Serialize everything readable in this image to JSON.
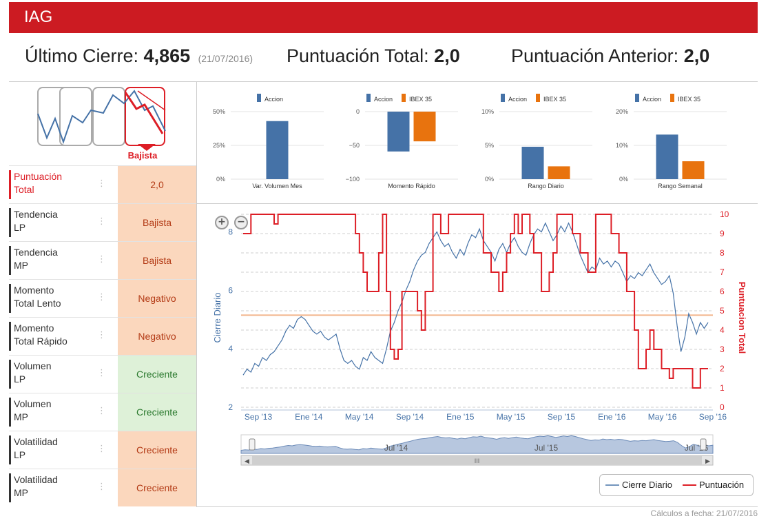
{
  "title": "IAG",
  "summary": {
    "ultimo_label": "Último Cierre:",
    "ultimo_value": "4,865",
    "ultimo_date": "(21/07/2016)",
    "total_label": "Puntuación Total:",
    "total_value": "2,0",
    "anterior_label": "Puntuación Anterior:",
    "anterior_value": "2,0"
  },
  "trend_icon_label": "Bajista",
  "indicators": [
    {
      "label_1": "Puntuación",
      "label_2": "Total",
      "value": "2,0",
      "status": "total"
    },
    {
      "label_1": "Tendencia",
      "label_2": "LP",
      "value": "Bajista",
      "status": "neg"
    },
    {
      "label_1": "Tendencia",
      "label_2": "MP",
      "value": "Bajista",
      "status": "neg"
    },
    {
      "label_1": "Momento",
      "label_2": "Total Lento",
      "value": "Negativo",
      "status": "neg"
    },
    {
      "label_1": "Momento",
      "label_2": "Total Rápido",
      "value": "Negativo",
      "status": "neg"
    },
    {
      "label_1": "Volumen",
      "label_2": "LP",
      "value": "Creciente",
      "status": "pos"
    },
    {
      "label_1": "Volumen",
      "label_2": "MP",
      "value": "Creciente",
      "status": "pos"
    },
    {
      "label_1": "Volatilidad",
      "label_2": "LP",
      "value": "Creciente",
      "status": "neg"
    },
    {
      "label_1": "Volatilidad",
      "label_2": "MP",
      "value": "Creciente",
      "status": "neg"
    }
  ],
  "colors": {
    "accion": "#4572a7",
    "ibex": "#e8730e",
    "red": "#dd1e26"
  },
  "chart_data": [
    {
      "type": "bar",
      "xlabel": "Var. Volumen Mes",
      "series": [
        {
          "name": "Accion",
          "values": [
            43
          ]
        }
      ],
      "yticks": [
        "50%",
        "25%",
        "0%"
      ],
      "ylim": [
        0,
        50
      ]
    },
    {
      "type": "bar",
      "xlabel": "Momento Rápido",
      "series": [
        {
          "name": "Accion",
          "values": [
            -59
          ]
        },
        {
          "name": "IBEX 35",
          "values": [
            -44
          ]
        }
      ],
      "yticks": [
        "0",
        "−50",
        "−100"
      ],
      "ylim": [
        -100,
        0
      ]
    },
    {
      "type": "bar",
      "xlabel": "Rango Diario",
      "series": [
        {
          "name": "Accion",
          "values": [
            4.8
          ]
        },
        {
          "name": "IBEX 35",
          "values": [
            1.9
          ]
        }
      ],
      "yticks": [
        "10%",
        "5%",
        "0%"
      ],
      "ylim": [
        0,
        10
      ]
    },
    {
      "type": "bar",
      "xlabel": "Rango Semanal",
      "series": [
        {
          "name": "Accion",
          "values": [
            13.2
          ]
        },
        {
          "name": "IBEX 35",
          "values": [
            5.3
          ]
        }
      ],
      "yticks": [
        "20%",
        "10%",
        "0%"
      ],
      "ylim": [
        0,
        20
      ]
    },
    {
      "type": "line",
      "ylabel": "Cierre Diario",
      "y2label": "Puntuacion Total",
      "ylim": [
        2,
        8.6
      ],
      "y2lim": [
        0,
        10
      ],
      "yticks": [
        "8",
        "6",
        "4",
        "2"
      ],
      "y2ticks": [
        "10",
        "9",
        "8",
        "7",
        "6",
        "5",
        "4",
        "3",
        "2",
        "1",
        "0"
      ],
      "xticks": [
        "Sep '13",
        "Ene '14",
        "May '14",
        "Sep '14",
        "Ene '15",
        "May '15",
        "Sep '15",
        "Ene '16",
        "May '16",
        "Sep '16"
      ],
      "reference_line": 5.15,
      "series": [
        {
          "name": "Cierre Diario",
          "axis": "left",
          "x": [
            0,
            2,
            4,
            6,
            8,
            10,
            12,
            14,
            16,
            18,
            20,
            22,
            24,
            26,
            28,
            30,
            32,
            34,
            36,
            38,
            40,
            42,
            44,
            46,
            48,
            50,
            52,
            54,
            56,
            58,
            60,
            62,
            64,
            66,
            68,
            70,
            72,
            74,
            76,
            78,
            80,
            82,
            84,
            86,
            88,
            90,
            92,
            94,
            96,
            98,
            100,
            102,
            104,
            106,
            108,
            110,
            112,
            114,
            116,
            118,
            120,
            122,
            124,
            126,
            128,
            130,
            132,
            134,
            136,
            138,
            140,
            142,
            144,
            146,
            148,
            150,
            152,
            154,
            156,
            158,
            160,
            162,
            164,
            166,
            168,
            170,
            172,
            174,
            176,
            178,
            180,
            182,
            184,
            186,
            188,
            190,
            192,
            194,
            196,
            198,
            200,
            202,
            204,
            206,
            208,
            210,
            212,
            214,
            216,
            218,
            220,
            222,
            224,
            226,
            228,
            230,
            232,
            234,
            236,
            238,
            240
          ],
          "y": [
            3.1,
            3.3,
            3.2,
            3.5,
            3.4,
            3.7,
            3.6,
            3.8,
            3.9,
            4.1,
            4.3,
            4.6,
            4.8,
            4.7,
            5.0,
            5.1,
            5.0,
            4.8,
            4.6,
            4.5,
            4.6,
            4.4,
            4.3,
            4.4,
            4.5,
            4.0,
            3.6,
            3.5,
            3.6,
            3.4,
            3.3,
            3.7,
            3.6,
            3.9,
            3.7,
            3.6,
            3.5,
            4.0,
            4.6,
            4.9,
            5.3,
            5.6,
            6.0,
            6.3,
            6.7,
            7.0,
            7.2,
            7.3,
            7.6,
            7.8,
            8.0,
            7.7,
            7.5,
            7.6,
            7.3,
            7.1,
            7.4,
            7.2,
            7.6,
            7.9,
            7.8,
            8.1,
            7.7,
            7.5,
            7.3,
            7.0,
            7.4,
            7.6,
            7.3,
            7.6,
            7.8,
            7.5,
            7.3,
            7.2,
            7.6,
            7.9,
            8.1,
            8.0,
            8.3,
            8.0,
            7.7,
            7.9,
            8.2,
            8.0,
            8.3,
            8.0,
            7.6,
            7.2,
            6.9,
            6.6,
            6.8,
            6.7,
            7.1,
            6.9,
            7.0,
            6.8,
            7.0,
            6.9,
            6.6,
            6.3,
            6.5,
            6.4,
            6.6,
            6.5,
            6.7,
            6.9,
            6.6,
            6.4,
            6.2,
            6.3,
            6.5,
            5.9,
            4.8,
            3.9,
            4.4,
            5.2,
            4.9,
            4.5,
            4.9,
            4.7,
            4.9
          ]
        },
        {
          "name": "Puntuación",
          "axis": "right",
          "x": [
            0,
            2,
            4,
            6,
            8,
            10,
            12,
            14,
            16,
            18,
            20,
            22,
            24,
            26,
            28,
            30,
            32,
            34,
            36,
            38,
            40,
            42,
            44,
            46,
            48,
            50,
            52,
            54,
            56,
            58,
            60,
            62,
            64,
            66,
            68,
            70,
            72,
            74,
            76,
            78,
            80,
            82,
            84,
            86,
            88,
            90,
            92,
            94,
            96,
            98,
            100,
            102,
            104,
            106,
            108,
            110,
            112,
            114,
            116,
            118,
            120,
            122,
            124,
            126,
            128,
            130,
            132,
            134,
            136,
            138,
            140,
            142,
            144,
            146,
            148,
            150,
            152,
            154,
            156,
            158,
            160,
            162,
            164,
            166,
            168,
            170,
            172,
            174,
            176,
            178,
            180,
            182,
            184,
            186,
            188,
            190,
            192,
            194,
            196,
            198,
            200,
            202,
            204,
            206,
            208,
            210,
            212,
            214,
            216,
            218,
            220,
            222,
            224,
            226,
            228,
            230,
            232,
            234,
            236,
            238,
            240
          ],
          "y": [
            9,
            9,
            10,
            10,
            10,
            10,
            10,
            10,
            9.5,
            10,
            10,
            10,
            10,
            10,
            10,
            10,
            10,
            10,
            10,
            10,
            10,
            10,
            10,
            10,
            10,
            10,
            10,
            10,
            10,
            9,
            8,
            7,
            6,
            6,
            6,
            8,
            10,
            6,
            3,
            2.5,
            3,
            6,
            6,
            6,
            6,
            5,
            4,
            6,
            6,
            10,
            10,
            9,
            9,
            10,
            10,
            10,
            10,
            10,
            10,
            10,
            10,
            10,
            8,
            8,
            7,
            7,
            6,
            7,
            8,
            9,
            10,
            9,
            10,
            10,
            9,
            8,
            8,
            6,
            6,
            7,
            8,
            10,
            10,
            10,
            10,
            9,
            9,
            8,
            8,
            7,
            7,
            10,
            10,
            10,
            10,
            9,
            9,
            8,
            8,
            6,
            6,
            4,
            2,
            2,
            3,
            4,
            3,
            3,
            2,
            2,
            1.5,
            2,
            2,
            2,
            2,
            2,
            1,
            1,
            2,
            2,
            2
          ]
        }
      ]
    }
  ],
  "navigator": {
    "labels": [
      "Jul '14",
      "Jul '15",
      "Jul '16"
    ]
  },
  "legend": {
    "cierre": "Cierre Diario",
    "puntuacion": "Puntuación"
  },
  "footer": "Cálculos a fecha: 21/07/2016"
}
